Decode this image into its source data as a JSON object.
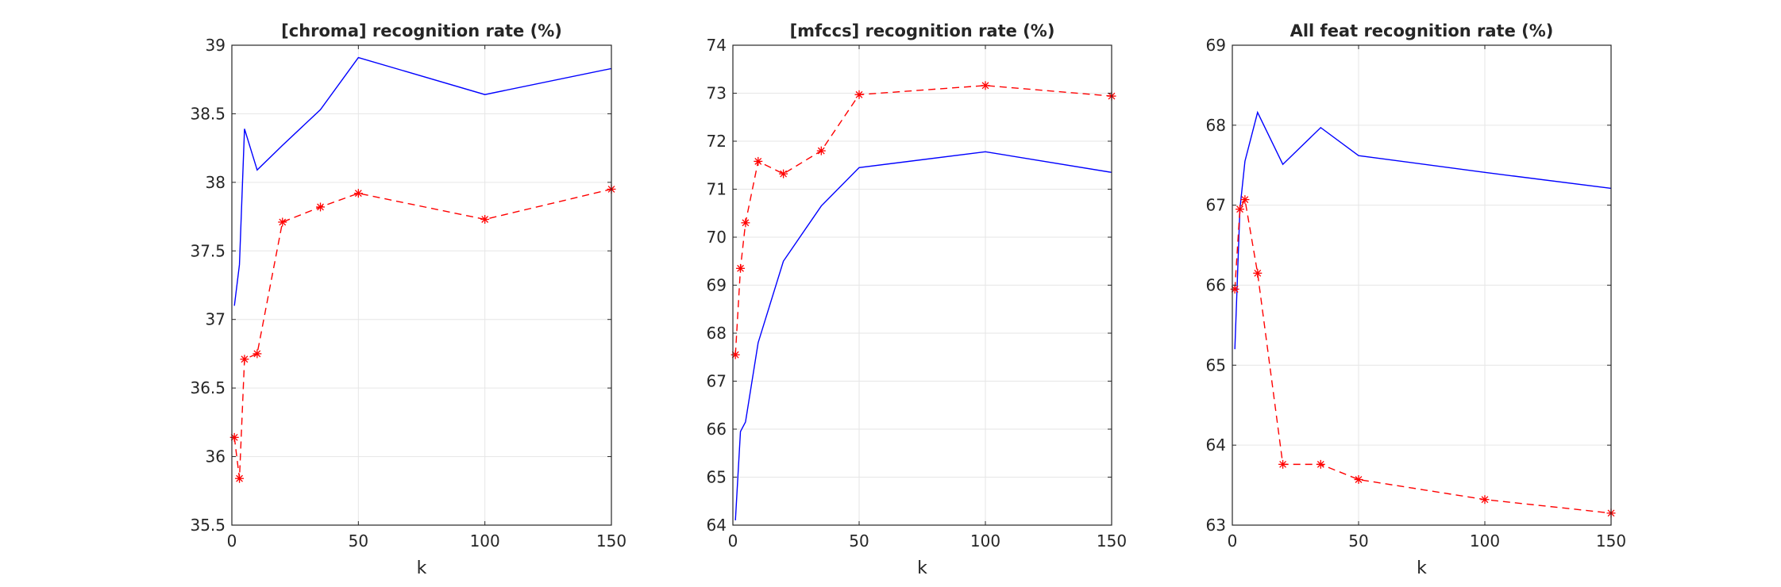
{
  "chart_data": [
    {
      "type": "line",
      "title": "[chroma] recognition rate (%)",
      "xlabel": "k",
      "ylabel": "",
      "xlim": [
        0,
        150
      ],
      "ylim": [
        35.5,
        39
      ],
      "xticks": [
        0,
        50,
        100,
        150
      ],
      "yticks": [
        35.5,
        36,
        36.5,
        37,
        37.5,
        38,
        38.5,
        39
      ],
      "xtick_labels": [
        "0",
        "50",
        "100",
        "150"
      ],
      "ytick_labels": [
        "35.5",
        "36",
        "36.5",
        "37",
        "37.5",
        "38",
        "38.5",
        "39"
      ],
      "grid": true,
      "series": [
        {
          "style": "solid",
          "color": "#0000ff",
          "marker": "none",
          "x": [
            1,
            3,
            5,
            10,
            20,
            35,
            50,
            100,
            150
          ],
          "y": [
            37.1,
            37.4,
            38.39,
            38.09,
            38.27,
            38.53,
            38.91,
            38.64,
            38.83
          ]
        },
        {
          "style": "dashed",
          "color": "#ff0000",
          "marker": "asterisk",
          "x": [
            1,
            3,
            5,
            10,
            20,
            35,
            50,
            100,
            150
          ],
          "y": [
            36.14,
            35.84,
            36.71,
            36.75,
            37.71,
            37.82,
            37.92,
            37.73,
            37.95
          ]
        }
      ]
    },
    {
      "type": "line",
      "title": "[mfccs] recognition rate (%)",
      "xlabel": "k",
      "ylabel": "",
      "xlim": [
        0,
        150
      ],
      "ylim": [
        64,
        74
      ],
      "xticks": [
        0,
        50,
        100,
        150
      ],
      "yticks": [
        64,
        65,
        66,
        67,
        68,
        69,
        70,
        71,
        72,
        73,
        74
      ],
      "xtick_labels": [
        "0",
        "50",
        "100",
        "150"
      ],
      "ytick_labels": [
        "64",
        "65",
        "66",
        "67",
        "68",
        "69",
        "70",
        "71",
        "72",
        "73",
        "74"
      ],
      "grid": true,
      "series": [
        {
          "style": "solid",
          "color": "#0000ff",
          "marker": "none",
          "x": [
            1,
            3,
            5,
            10,
            20,
            35,
            50,
            100,
            150
          ],
          "y": [
            64.1,
            65.95,
            66.15,
            67.8,
            69.5,
            70.65,
            71.45,
            71.78,
            71.35
          ]
        },
        {
          "style": "dashed",
          "color": "#ff0000",
          "marker": "asterisk",
          "x": [
            1,
            3,
            5,
            10,
            20,
            35,
            50,
            100,
            150
          ],
          "y": [
            67.55,
            69.35,
            70.3,
            71.58,
            71.32,
            71.8,
            72.97,
            73.16,
            72.94
          ]
        }
      ]
    },
    {
      "type": "line",
      "title": "All feat recognition rate (%)",
      "xlabel": "k",
      "ylabel": "",
      "xlim": [
        0,
        150
      ],
      "ylim": [
        63,
        69
      ],
      "xticks": [
        0,
        50,
        100,
        150
      ],
      "yticks": [
        63,
        64,
        65,
        66,
        67,
        68,
        69
      ],
      "xtick_labels": [
        "0",
        "50",
        "100",
        "150"
      ],
      "ytick_labels": [
        "63",
        "64",
        "65",
        "66",
        "67",
        "68",
        "69"
      ],
      "grid": true,
      "series": [
        {
          "style": "solid",
          "color": "#0000ff",
          "marker": "none",
          "x": [
            1,
            3,
            5,
            10,
            20,
            35,
            50,
            100,
            150
          ],
          "y": [
            65.2,
            66.95,
            67.55,
            68.16,
            67.51,
            67.97,
            67.62,
            67.41,
            67.21
          ]
        },
        {
          "style": "dashed",
          "color": "#ff0000",
          "marker": "asterisk",
          "x": [
            1,
            3,
            5,
            10,
            20,
            35,
            50,
            100,
            150
          ],
          "y": [
            65.95,
            66.95,
            67.07,
            66.15,
            63.76,
            63.76,
            63.57,
            63.32,
            63.15
          ]
        }
      ]
    }
  ]
}
